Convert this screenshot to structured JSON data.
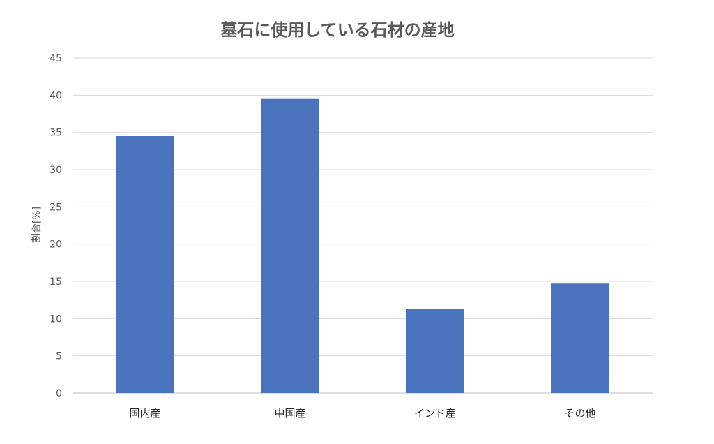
{
  "chart_data": {
    "type": "bar",
    "title": "墓石に使用している石材の産地",
    "xlabel": "",
    "ylabel": "割合[%]",
    "categories": [
      "国内産",
      "中国産",
      "インド産",
      "その他"
    ],
    "series": [
      {
        "values": [
          34.5,
          39.5,
          11.3,
          14.7
        ]
      }
    ],
    "ylim": [
      0,
      45
    ],
    "yticks": [
      "0",
      "5",
      "10",
      "15",
      "20",
      "25",
      "30",
      "35",
      "40",
      "45"
    ],
    "grid": true,
    "legend": "none",
    "colors": {
      "bar": "#4a72bd",
      "grid": "#d9d9d9"
    }
  }
}
